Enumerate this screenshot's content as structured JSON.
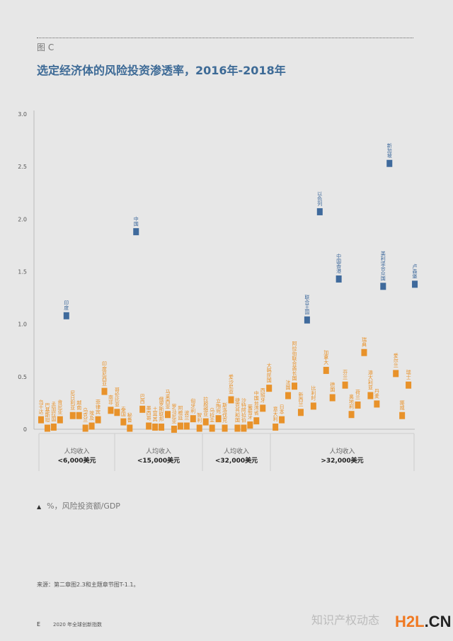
{
  "figure_label": "图 C",
  "title": "选定经济体的风险投资渗透率，2016年-2018年",
  "note": "%，风险投资额/GDP",
  "source": "来源：第二章图2.3和主题章节图T-1.1。",
  "footer": {
    "letter": "E",
    "text": "2020 年全球创新指数"
  },
  "watermark": {
    "wechat": "知识产权动态",
    "site": "H2L.CN"
  },
  "colors": {
    "default": "#E8922A",
    "highlight": "#3F6A9C",
    "title": "#3d6a96"
  },
  "chart_data": {
    "type": "scatter",
    "title": "选定经济体的风险投资渗透率，2016年-2018年",
    "ylabel": "%，风险投资额/GDP",
    "ylim": [
      0,
      3.0
    ],
    "yticks": [
      "0",
      "0.5",
      "1.0",
      "1.5",
      "2.0",
      "2.5",
      "3.0"
    ],
    "grid": false,
    "groups": [
      {
        "label": "人均收入",
        "range": "<6,000美元",
        "points": [
          {
            "name": "乌干达",
            "value": 0.09
          },
          {
            "name": "巴基斯坦",
            "value": 0.01
          },
          {
            "name": "孟加拉国",
            "value": 0.02
          },
          {
            "name": "肯尼亚",
            "value": 0.09
          },
          {
            "name": "印度",
            "value": 1.08,
            "highlight": true
          },
          {
            "name": "尼日利亚",
            "value": 0.13
          },
          {
            "name": "越南",
            "value": 0.13
          },
          {
            "name": "乌克兰",
            "value": 0.01
          },
          {
            "name": "埃及",
            "value": 0.03
          },
          {
            "name": "菲律宾",
            "value": 0.09
          },
          {
            "name": "印度尼西亚",
            "value": 0.36
          }
        ]
      },
      {
        "label": "人均收入",
        "range": "<15,000美元",
        "points": [
          {
            "name": "南非",
            "value": 0.18
          },
          {
            "name": "哥伦比亚",
            "value": 0.16
          },
          {
            "name": "泰国",
            "value": 0.07
          },
          {
            "name": "秘鲁",
            "value": 0.01
          },
          {
            "name": "中国",
            "value": 1.88,
            "highlight": true
          },
          {
            "name": "巴西",
            "value": 0.19
          },
          {
            "name": "墨西哥",
            "value": 0.03
          },
          {
            "name": "土耳其",
            "value": 0.02
          },
          {
            "name": "俄罗斯联邦",
            "value": 0.02
          },
          {
            "name": "马来西亚",
            "value": 0.14
          },
          {
            "name": "罗马尼亚",
            "value": 0.0
          },
          {
            "name": "阿根廷",
            "value": 0.03
          },
          {
            "name": "波兰",
            "value": 0.03
          },
          {
            "name": "匈牙利",
            "value": 0.1
          },
          {
            "name": "智利",
            "value": 0.01
          }
        ]
      },
      {
        "label": "人均收入",
        "range": "<32,000美元",
        "points": [
          {
            "name": "拉脱维亚",
            "value": 0.07
          },
          {
            "name": "乌拉圭",
            "value": 0.01
          },
          {
            "name": "立陶宛",
            "value": 0.1
          },
          {
            "name": "斯洛伐克",
            "value": 0.01
          },
          {
            "name": "爱沙尼亚",
            "value": 0.28
          },
          {
            "name": "捷克共和国",
            "value": 0.01
          },
          {
            "name": "沙特阿拉伯",
            "value": 0.01
          },
          {
            "name": "葡萄牙",
            "value": 0.04
          },
          {
            "name": "中国台湾省",
            "value": 0.08
          },
          {
            "name": "西班牙",
            "value": 0.2
          },
          {
            "name": "大韩民国",
            "value": 0.39
          }
        ]
      },
      {
        "label": "人均收入",
        "range": ">32,000美元",
        "points": [
          {
            "name": "意大利",
            "value": 0.02
          },
          {
            "name": "日本",
            "value": 0.09
          },
          {
            "name": "法国",
            "value": 0.32
          },
          {
            "name": "阿拉伯联合酋长国",
            "value": 0.41
          },
          {
            "name": "新西兰",
            "value": 0.16
          },
          {
            "name": "联合王国",
            "value": 1.04,
            "highlight": true
          },
          {
            "name": "比利时",
            "value": 0.22
          },
          {
            "name": "以色列",
            "value": 2.07,
            "highlight": true
          },
          {
            "name": "加拿大",
            "value": 0.56
          },
          {
            "name": "德国",
            "value": 0.3
          },
          {
            "name": "中国香港",
            "value": 1.43,
            "highlight": true
          },
          {
            "name": "芬兰",
            "value": 0.42
          },
          {
            "name": "奥地利",
            "value": 0.14
          },
          {
            "name": "荷兰",
            "value": 0.23
          },
          {
            "name": "瑞典",
            "value": 0.73
          },
          {
            "name": "澳大利亚",
            "value": 0.32
          },
          {
            "name": "丹麦",
            "value": 0.24
          },
          {
            "name": "美利坚合众国",
            "value": 1.36,
            "highlight": true
          },
          {
            "name": "新加坡",
            "value": 2.53,
            "highlight": true
          },
          {
            "name": "爱尔兰",
            "value": 0.53
          },
          {
            "name": "挪威",
            "value": 0.13
          },
          {
            "name": "瑞士",
            "value": 0.42
          },
          {
            "name": "卢森堡",
            "value": 1.38,
            "highlight": true
          }
        ]
      }
    ]
  }
}
